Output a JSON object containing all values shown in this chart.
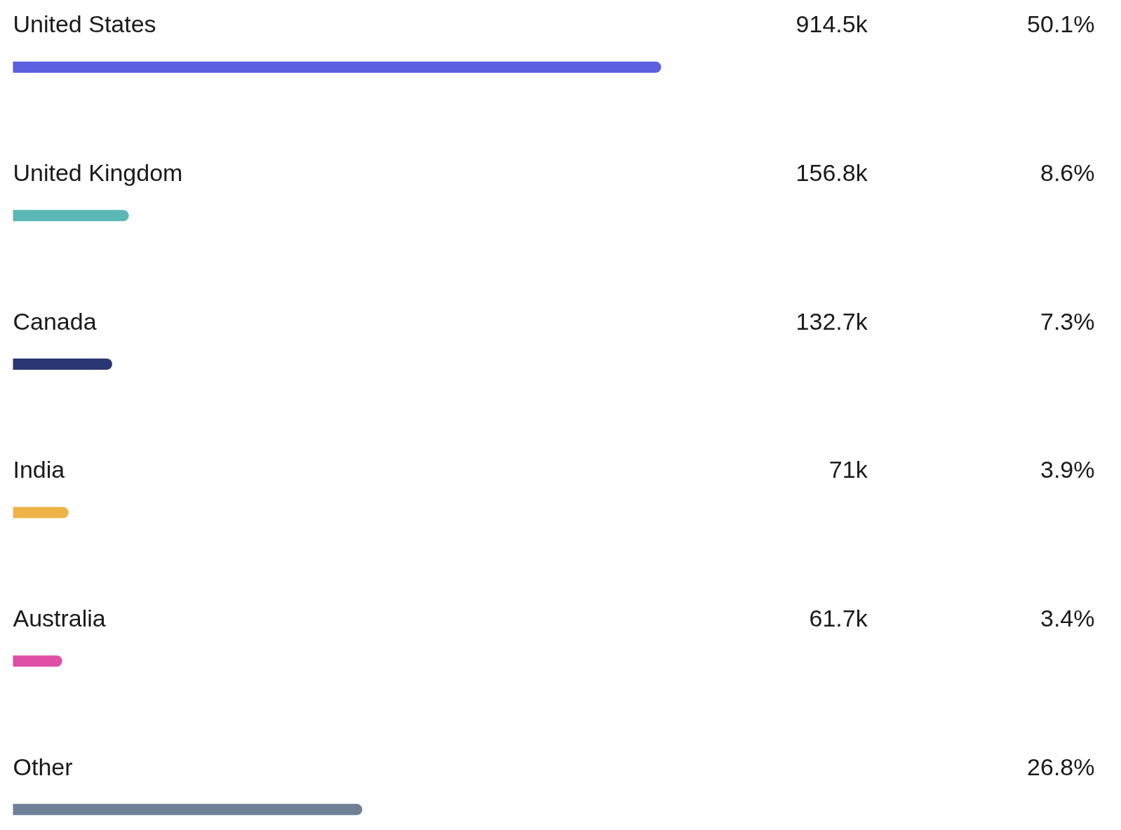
{
  "chart_data": {
    "type": "bar",
    "orientation": "horizontal",
    "categories": [
      "United States",
      "United Kingdom",
      "Canada",
      "India",
      "Australia",
      "Other"
    ],
    "values": [
      50.1,
      8.6,
      7.3,
      3.9,
      3.4,
      26.8
    ],
    "colors": [
      "#5b5fe0",
      "#5bb8b6",
      "#2b3674",
      "#ecb447",
      "#df4fa6",
      "#6f7f96"
    ],
    "value_labels": [
      "50.1%",
      "8.6%",
      "7.3%",
      "3.9%",
      "3.4%",
      "26.8%"
    ],
    "annotations": [
      "914.5k",
      "156.8k",
      "132.7k",
      "71k",
      "61.7k"
    ],
    "tick_labels": false
  }
}
